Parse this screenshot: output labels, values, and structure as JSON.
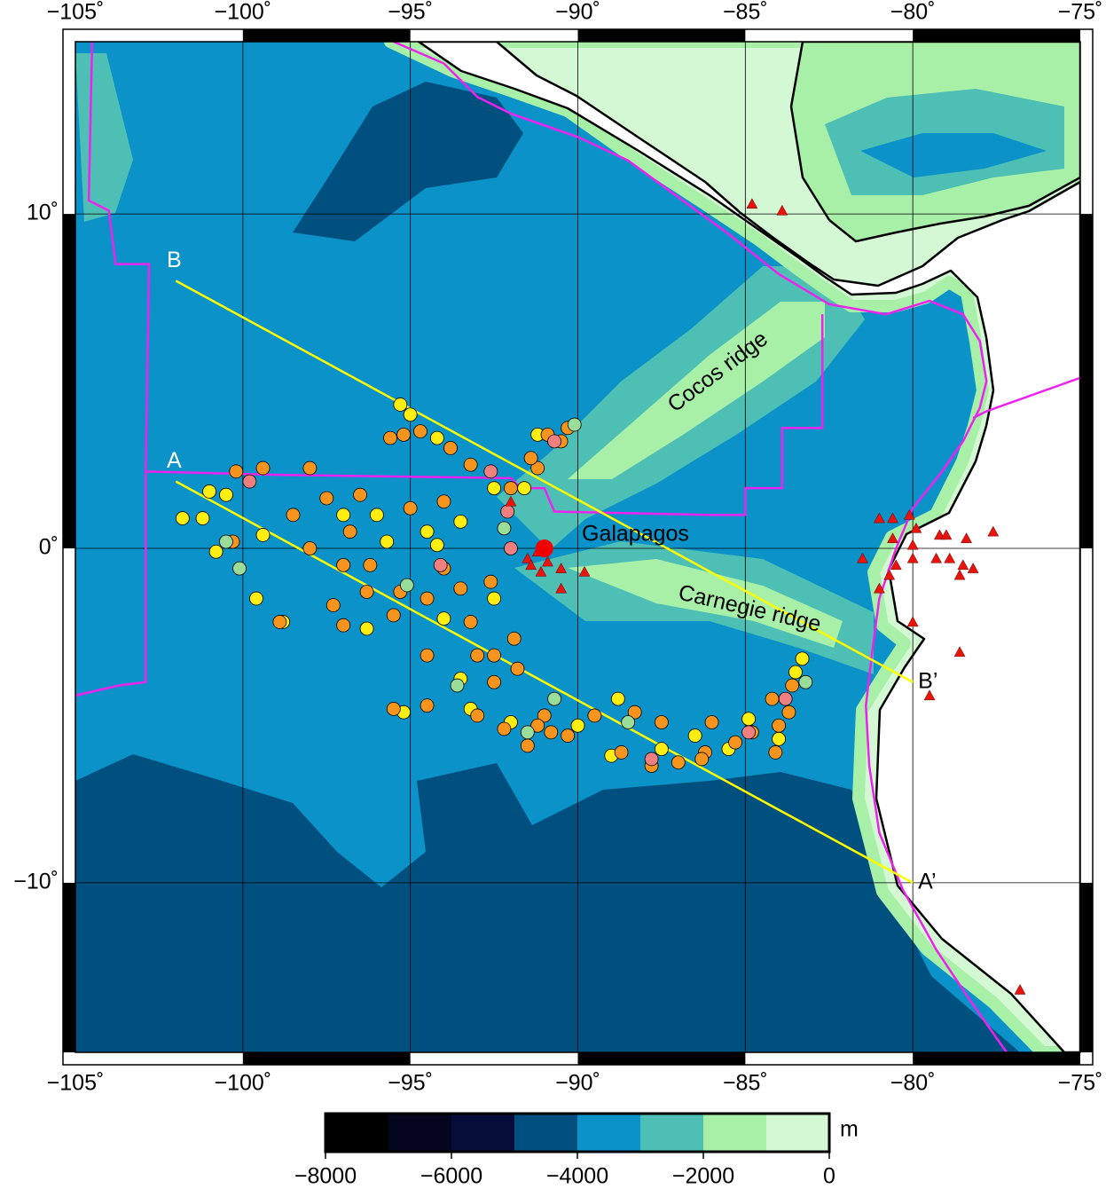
{
  "chart_data": {
    "type": "map",
    "xlim": [
      -105,
      -75
    ],
    "ylim": [
      -15.07,
      15.15
    ],
    "xticks": [
      {
        "value": -105,
        "label": "−105˚"
      },
      {
        "value": -100,
        "label": "−100˚"
      },
      {
        "value": -95,
        "label": "−95˚"
      },
      {
        "value": -90,
        "label": "−90˚"
      },
      {
        "value": -85,
        "label": "−85˚"
      },
      {
        "value": -80,
        "label": "−80˚"
      },
      {
        "value": -75,
        "label": "−75˚"
      }
    ],
    "yticks": [
      {
        "value": 10,
        "label": "10˚"
      },
      {
        "value": 0,
        "label": "0˚"
      },
      {
        "value": -10,
        "label": "−10˚"
      }
    ],
    "grid": true,
    "annotations": {
      "galapagos": "Galapagos",
      "cocos": "Cocos ridge",
      "carnegie": "Carnegie ridge"
    },
    "profiles": [
      {
        "start_label": "A",
        "end_label": "A’",
        "lon": [
          -102,
          -80
        ],
        "lat": [
          2,
          -10
        ],
        "color": "#ffff00"
      },
      {
        "start_label": "B",
        "end_label": "B’",
        "lon": [
          -102,
          -80
        ],
        "lat": [
          8,
          -4
        ],
        "color": "#ffff00"
      }
    ],
    "hotspot": {
      "lon": -91,
      "lat": 0,
      "color": "#ee0000"
    },
    "plate_boundaries": {
      "color": "#ee22ee",
      "lines": [
        {
          "lon": [
            -95.5,
            -94,
            -93,
            -92,
            -90,
            -88.5,
            -87,
            -85.5,
            -84,
            -82.5,
            -80.8,
            -79.5,
            -78.5,
            -78,
            -77.8,
            -78,
            -78.5,
            -79.2,
            -80,
            -80.5,
            -81,
            -81.2,
            -81.4,
            -81.3,
            -81,
            -80.3,
            -79.3,
            -78.3,
            -77.2
          ],
          "lat": [
            15.15,
            14.5,
            13.5,
            13,
            12.3,
            11.6,
            10.5,
            9.4,
            8.2,
            7.3,
            7,
            7.4,
            7,
            6.2,
            5,
            4.2,
            3.2,
            2.2,
            1.2,
            0,
            -1.5,
            -3,
            -4.7,
            -6.5,
            -8.5,
            -10.2,
            -12,
            -13.5,
            -15.07
          ]
        },
        {
          "lon": [
            -104.5,
            -104.6,
            -104,
            -103.8,
            -102.8,
            -102.9,
            -102.9,
            -103.7,
            -105
          ],
          "lat": [
            15.15,
            10.4,
            10.1,
            8.5,
            8.5,
            2.3,
            -4,
            -4.1,
            -4.4
          ]
        },
        {
          "lon": [
            -102.9,
            -99,
            -92,
            -91.7,
            -91,
            -90.7,
            -86,
            -85,
            -85,
            -83.9,
            -83.9,
            -82.7,
            -82.7
          ],
          "lat": [
            2.3,
            2.2,
            2.1,
            1.8,
            1.8,
            1.1,
            1,
            1,
            1.8,
            1.8,
            3.6,
            3.6,
            7
          ]
        },
        {
          "lon": [
            -78.2,
            -77.8,
            -75
          ],
          "lat": [
            3.9,
            4.1,
            5.1
          ]
        }
      ]
    },
    "volcanoes": {
      "color": "#e8140c",
      "lon": [
        -84.8,
        -83.9,
        -81,
        -80.6,
        -80.1,
        -79.9,
        -80.6,
        -80,
        -79.2,
        -79,
        -78.4,
        -77.6,
        -81.5,
        -80.5,
        -80,
        -79.3,
        -78.9,
        -78.5,
        -78.6,
        -78.2,
        -81,
        -80,
        -79.5,
        -80.7,
        -78.6,
        -76.8,
        -91.5,
        -91.2,
        -91.4,
        -90.9,
        -90.5,
        -90.5,
        -91.1,
        -89.8,
        -92
      ],
      "lat": [
        10.3,
        10.1,
        0.9,
        0.9,
        1,
        0.6,
        0.3,
        0.1,
        0.4,
        0.4,
        0.3,
        0.5,
        -0.3,
        -0.5,
        -0.3,
        -0.3,
        -0.3,
        -0.5,
        -0.8,
        -0.6,
        -1.2,
        -2.2,
        -4.4,
        -0.8,
        -3.1,
        -13.2,
        -0.3,
        -0.1,
        -0.5,
        -0.4,
        -0.6,
        -1.2,
        -0.7,
        -0.7,
        1.4
      ]
    },
    "events": [
      {
        "color": "#ffee11",
        "lon": [
          -101,
          -100.5,
          -101.8,
          -101.2,
          -100.8,
          -99.4,
          -99.6,
          -98.8,
          -97,
          -96,
          -95.7,
          -94.2,
          -93.5,
          -95.3,
          -95,
          -94.2,
          -91.6,
          -91.2,
          -92.5,
          -93.2,
          -95.2,
          -92,
          -90,
          -89,
          -88.8,
          -87.5,
          -86.5,
          -85.5,
          -84.9,
          -83.3,
          -83.5,
          -84,
          -96.3,
          -94,
          -92.5,
          -93.5,
          -94.5
        ],
        "lat": [
          1.7,
          1.6,
          0.9,
          0.9,
          -0.1,
          0.4,
          -1.5,
          -2.2,
          1,
          1,
          0.2,
          0.1,
          0.8,
          4.3,
          4,
          3.3,
          1.8,
          3.4,
          1.8,
          -4.8,
          -4.9,
          -5.2,
          -5.3,
          -6.2,
          -4.5,
          -6,
          -5.6,
          -6,
          -5.1,
          -3.3,
          -3.7,
          -5.7,
          -2.4,
          -2.1,
          -1.5,
          -3.9,
          0.5
        ]
      },
      {
        "color": "#f7941d",
        "lon": [
          -100.2,
          -99.4,
          -98,
          -97.5,
          -96.5,
          -96.8,
          -98.5,
          -98,
          -97,
          -96.2,
          -95,
          -94,
          -94,
          -95.3,
          -96.3,
          -97.3,
          -97,
          -95.5,
          -94.5,
          -93.2,
          -92.6,
          -93.5,
          -92.5,
          -91.9,
          -93,
          -94.5,
          -94.5,
          -92.5,
          -91.8,
          -95.5,
          -95.2,
          -94.7,
          -93.8,
          -95.6,
          -93.2,
          -92,
          -90.9,
          -90.3,
          -90.5,
          -91.2,
          -91.4,
          -91,
          -89.5,
          -88.3,
          -87.5,
          -86,
          -86.2,
          -88.7,
          -90.8,
          -91.2,
          -92.2,
          -93,
          -84.8,
          -85.3,
          -87,
          -87.8,
          -86.3,
          -90.3,
          -91.5,
          -83.6,
          -83.7,
          -84.2,
          -84,
          -84.1,
          -100.3,
          -98.9
        ],
        "lat": [
          2.3,
          2.4,
          2.4,
          1.5,
          1.6,
          0.5,
          1,
          0,
          -0.5,
          -0.5,
          1.2,
          -0.6,
          1.4,
          -1.3,
          -1.3,
          -1.7,
          -2.3,
          -2,
          -1.5,
          -2.2,
          -1,
          -1.2,
          -3.2,
          -2.7,
          -3.2,
          -3.2,
          -4.7,
          -4,
          -3.6,
          -4.8,
          3.4,
          3.5,
          3,
          3.3,
          2.5,
          1.8,
          3.4,
          3.6,
          3.2,
          2.4,
          2.7,
          -5,
          -5,
          -4.9,
          -5.2,
          -5.2,
          -6.1,
          -6.1,
          -5.5,
          -5.3,
          -5.4,
          -5,
          -5.5,
          -5.8,
          -6.4,
          -6.5,
          -6.3,
          -5.6,
          -5.9,
          -4.1,
          -4.9,
          -4.5,
          -5.3,
          -6.1,
          0.2,
          -2.2
        ]
      },
      {
        "color": "#99dd99",
        "lon": [
          -100.1,
          -92.2,
          -90.1,
          -93.6,
          -91.5,
          -83.2,
          -88.5,
          -90.7,
          -95.1,
          -100.5
        ],
        "lat": [
          -0.6,
          0.6,
          3.7,
          -4.1,
          -5.5,
          -4,
          -5.2,
          -4.5,
          -1.1,
          0.2
        ]
      },
      {
        "color": "#f08080",
        "lon": [
          -99.8,
          -92.1,
          -92,
          -90.7,
          -83.8,
          -84.9,
          -87.8,
          -94.1,
          -92.6
        ],
        "lat": [
          2,
          1.1,
          0,
          3.2,
          -4.5,
          -5.5,
          -6.3,
          -0.5,
          2.3
        ]
      }
    ],
    "colorbar": {
      "unit": "m",
      "levels": [
        -8000,
        -7000,
        -6000,
        -5000,
        -4000,
        -3000,
        -2000,
        -1000,
        0
      ],
      "colors": [
        "#000000",
        "#03061c",
        "#060c38",
        "#00507f",
        "#0a92c9",
        "#4dbfb4",
        "#a8f0a8",
        "#d4f8d4"
      ],
      "ticks": [
        {
          "value": -8000,
          "label": "−8000"
        },
        {
          "value": -6000,
          "label": "−6000"
        },
        {
          "value": -4000,
          "label": "−4000"
        },
        {
          "value": -2000,
          "label": "−2000"
        },
        0
      ]
    }
  }
}
